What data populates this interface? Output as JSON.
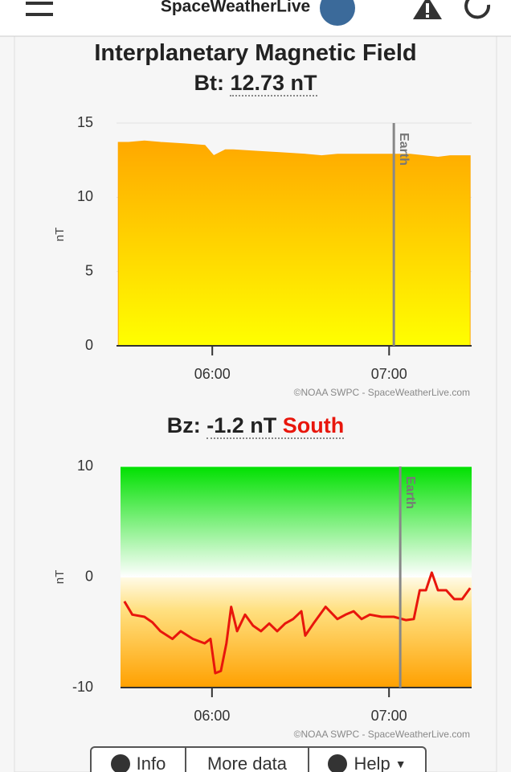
{
  "header": {
    "brand": "SpaceWeatherLive"
  },
  "chart_data": [
    {
      "type": "area",
      "title": "Interplanetary Magnetic Field",
      "reading_label": "Bt:",
      "reading_value": "12.73 nT",
      "y_label": "nT",
      "credit": "©NOAA SWPC - SpaceWeatherLive.com",
      "x": [
        328.1,
        331.6,
        337,
        342.5,
        350.7,
        357.5,
        360.5,
        364.4,
        367.1,
        375.3,
        383.5,
        391.6,
        397.1,
        402.5,
        410.7,
        418.9,
        427.1,
        436.6,
        440.7,
        447.5
      ],
      "values": [
        13.7,
        13.7,
        13.8,
        13.7,
        13.6,
        13.5,
        12.8,
        13.2,
        13.2,
        13.1,
        13.0,
        12.9,
        12.8,
        12.9,
        12.9,
        12.9,
        12.9,
        12.7,
        12.8,
        12.8
      ],
      "xlim": [
        327.5,
        448
      ],
      "xticks": [
        {
          "value": 360,
          "label": "06:00"
        },
        {
          "value": 420,
          "label": "07:00"
        }
      ],
      "ylim": [
        0,
        15
      ],
      "yticks": [
        0,
        5,
        10,
        15
      ],
      "grid": true,
      "marker": {
        "x": 421.6,
        "label": "Earth"
      }
    },
    {
      "type": "line",
      "reading_label": "Bz:",
      "reading_value": "-1.2 nT",
      "direction": "South",
      "y_label": "nT",
      "credit": "©NOAA SWPC - SpaceWeatherLive.com",
      "color": "#e8160c",
      "x": [
        330.3,
        333,
        337.1,
        339.8,
        342.5,
        346.6,
        349.4,
        353.5,
        357.5,
        359.5,
        361.1,
        363,
        364.9,
        366.5,
        368.5,
        371.2,
        373.9,
        376.6,
        379.4,
        382.1,
        384.8,
        387.5,
        390.3,
        391.6,
        394.4,
        398.5,
        402.5,
        405.3,
        408,
        410.7,
        413.5,
        417.5,
        421.6,
        425.7,
        428.4,
        430.4,
        432.5,
        434.5,
        436.6,
        439.4,
        442.1,
        444.8,
        447.5
      ],
      "values": [
        -2.2,
        -3.4,
        -3.6,
        -4.1,
        -4.9,
        -5.6,
        -4.9,
        -5.6,
        -6,
        -5.6,
        -8.7,
        -8.5,
        -6,
        -2.7,
        -4.9,
        -3.4,
        -4.4,
        -4.9,
        -4.2,
        -4.9,
        -4.2,
        -3.8,
        -3.1,
        -5.3,
        -4.2,
        -2.7,
        -3.8,
        -3.4,
        -3.1,
        -3.8,
        -3.4,
        -3.6,
        -3.6,
        -3.9,
        -3.8,
        -1.2,
        -1.2,
        0.4,
        -1.2,
        -1.2,
        -2,
        -2,
        -1.0
      ],
      "xlim": [
        329,
        448
      ],
      "xticks": [
        {
          "value": 360,
          "label": "06:00"
        },
        {
          "value": 420,
          "label": "07:00"
        }
      ],
      "ylim": [
        -10,
        10
      ],
      "yticks": [
        -10,
        0,
        10
      ],
      "grid": true,
      "marker": {
        "x": 423.8,
        "label": "Earth"
      }
    }
  ],
  "buttons": [
    "Info",
    "More data",
    "Help"
  ]
}
